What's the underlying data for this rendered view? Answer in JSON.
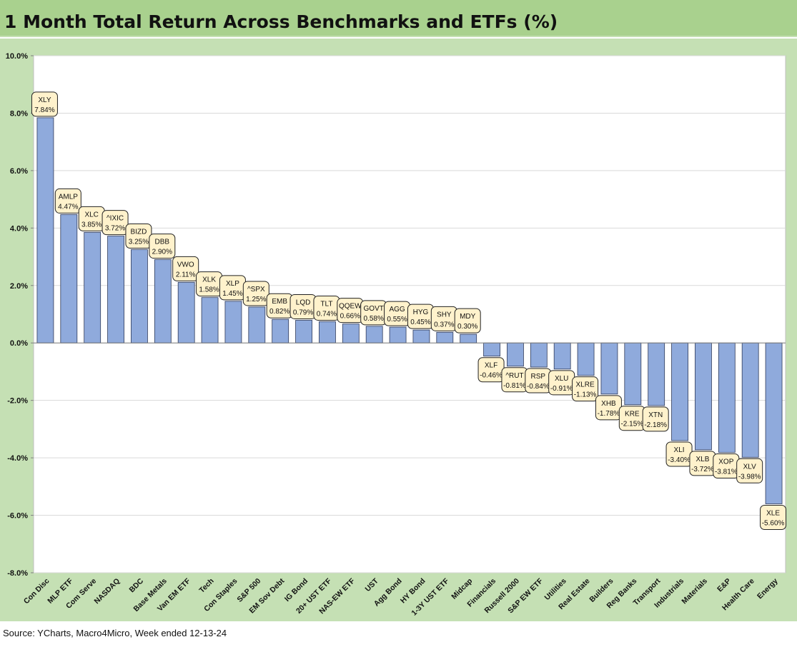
{
  "title": "1 Month Total Return Across Benchmarks and ETFs (%)",
  "source": "Source: YCharts, Macro4Micro, Week ended 12-13-24",
  "colors": {
    "bar": "#8faadc",
    "bar_stroke": "#2f3a5a",
    "label_bg": "#fff2cc",
    "panel_bg": "#c5e0b4",
    "title_bg": "#a9d18e"
  },
  "chart_data": {
    "type": "bar",
    "ylim": [
      -8,
      10
    ],
    "yticks": [
      "10.0%",
      "8.0%",
      "6.0%",
      "4.0%",
      "2.0%",
      "0.0%",
      "-2.0%",
      "-4.0%",
      "-6.0%",
      "-8.0%"
    ],
    "grid": true,
    "categories": [
      "Con Disc",
      "MLP ETF",
      "Com Serve",
      "NASDAQ",
      "BDC",
      "Base Metals",
      "Van EM ETF",
      "Tech",
      "Con Staples",
      "S&P 500",
      "EM Sov Debt",
      "IG Bond",
      "20+ UST ETF",
      "NAS-EW ETF",
      "UST",
      "Agg Bond",
      "HY Bond",
      "1-3Y UST ETF",
      "Midcap",
      "Financials",
      "Russell 2000",
      "S&P EW ETF",
      "Utilities",
      "Real Estate",
      "Builders",
      "Reg Banks",
      "Transport",
      "Industrials",
      "Materials",
      "E&P",
      "Health Care",
      "Energy"
    ],
    "tickers": [
      "XLY",
      "AMLP",
      "XLC",
      "^IXIC",
      "BIZD",
      "DBB",
      "VWO",
      "XLK",
      "XLP",
      "^SPX",
      "EMB",
      "LQD",
      "TLT",
      "QQEW",
      "GOVT",
      "AGG",
      "HYG",
      "SHY",
      "MDY",
      "XLF",
      "^RUT",
      "RSP",
      "XLU",
      "XLRE",
      "XHB",
      "KRE",
      "XTN",
      "XLI",
      "XLB",
      "XOP",
      "XLV",
      "XLE"
    ],
    "labels": [
      "7.84%",
      "4.47%",
      "3.85%",
      "3.72%",
      "3.25%",
      "2.90%",
      "2.11%",
      "1.58%",
      "1.45%",
      "1.25%",
      "0.82%",
      "0.79%",
      "0.74%",
      "0.66%",
      "0.58%",
      "0.55%",
      "0.45%",
      "0.37%",
      "0.30%",
      "-0.46%",
      "-0.81%",
      "-0.84%",
      "-0.91%",
      "-1.13%",
      "-1.78%",
      "-2.15%",
      "-2.18%",
      "-3.40%",
      "-3.72%",
      "-3.81%",
      "-3.98%",
      "-5.60%"
    ],
    "values": [
      7.84,
      4.47,
      3.85,
      3.72,
      3.25,
      2.9,
      2.11,
      1.58,
      1.45,
      1.25,
      0.82,
      0.79,
      0.74,
      0.66,
      0.58,
      0.55,
      0.45,
      0.37,
      0.3,
      -0.46,
      -0.81,
      -0.84,
      -0.91,
      -1.13,
      -1.78,
      -2.15,
      -2.18,
      -3.4,
      -3.72,
      -3.81,
      -3.98,
      -5.6
    ]
  }
}
